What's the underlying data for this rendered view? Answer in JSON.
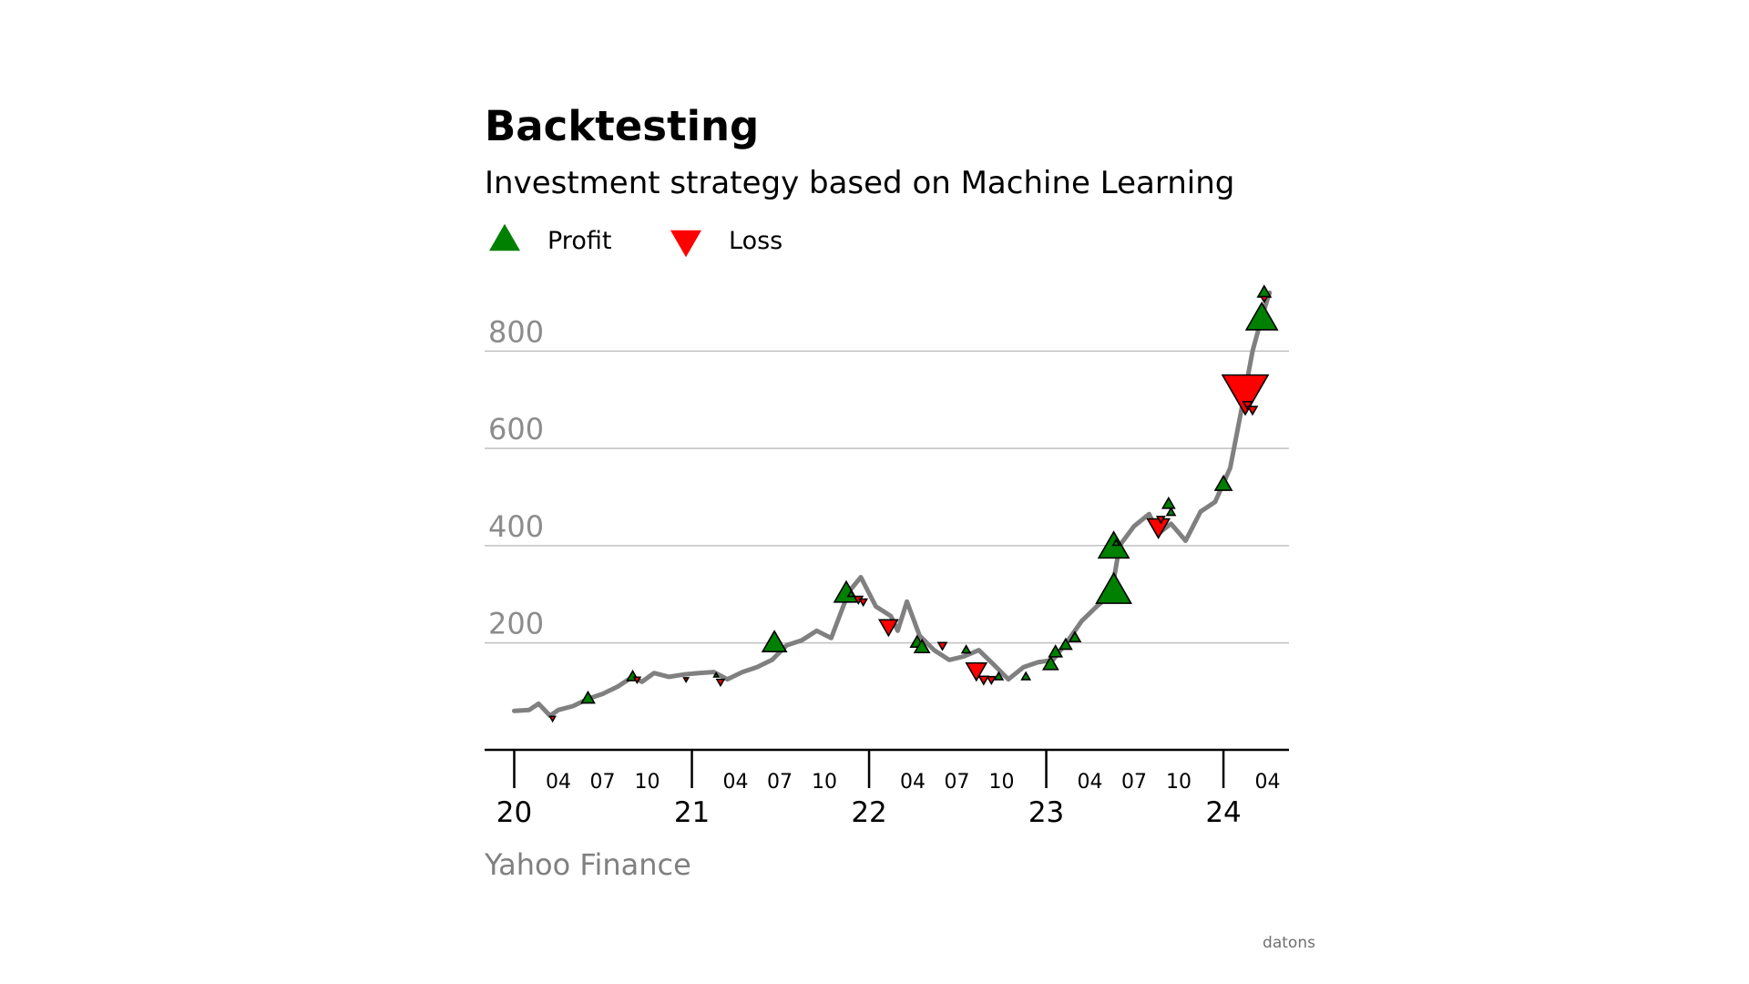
{
  "chart_data": {
    "type": "line",
    "title": "Backtesting",
    "subtitle": "Investment strategy based on Machine Learning",
    "source": "Yahoo Finance",
    "credit": "datons",
    "legend": {
      "placement": "top-left",
      "entries": [
        {
          "label": "Profit",
          "marker": "triangle-up",
          "color": "#008000"
        },
        {
          "label": "Loss",
          "marker": "triangle-down",
          "color": "#ff0000"
        }
      ]
    },
    "colors": {
      "line": "#808080",
      "profit": "#008000",
      "loss": "#ff0000",
      "grid": "#c0c0c0"
    },
    "grid": "horizontal",
    "ylim": [
      -20,
      960
    ],
    "xlim": [
      "2019-11-01",
      "2024-05-15"
    ],
    "y_ticks": [
      {
        "value": 200,
        "label": "200"
      },
      {
        "value": 400,
        "label": "400"
      },
      {
        "value": 600,
        "label": "600"
      },
      {
        "value": 800,
        "label": "800"
      }
    ],
    "x_major_ticks": [
      {
        "date": "2020-01-01",
        "label": "20"
      },
      {
        "date": "2021-01-01",
        "label": "21"
      },
      {
        "date": "2022-01-01",
        "label": "22"
      },
      {
        "date": "2023-01-01",
        "label": "23"
      },
      {
        "date": "2024-01-01",
        "label": "24"
      }
    ],
    "x_minor_ticks": [
      {
        "date": "2020-04-01",
        "label": "04"
      },
      {
        "date": "2020-07-01",
        "label": "07"
      },
      {
        "date": "2020-10-01",
        "label": "10"
      },
      {
        "date": "2021-04-01",
        "label": "04"
      },
      {
        "date": "2021-07-01",
        "label": "07"
      },
      {
        "date": "2021-10-01",
        "label": "10"
      },
      {
        "date": "2022-04-01",
        "label": "04"
      },
      {
        "date": "2022-07-01",
        "label": "07"
      },
      {
        "date": "2022-10-01",
        "label": "10"
      },
      {
        "date": "2023-04-01",
        "label": "04"
      },
      {
        "date": "2023-07-01",
        "label": "07"
      },
      {
        "date": "2023-10-01",
        "label": "10"
      },
      {
        "date": "2024-04-01",
        "label": "04"
      }
    ],
    "series": [
      {
        "name": "",
        "points": [
          [
            "2020-01-01",
            60
          ],
          [
            "2020-02-01",
            62
          ],
          [
            "2020-02-20",
            75
          ],
          [
            "2020-03-15",
            50
          ],
          [
            "2020-04-01",
            62
          ],
          [
            "2020-05-01",
            70
          ],
          [
            "2020-06-01",
            85
          ],
          [
            "2020-07-01",
            95
          ],
          [
            "2020-08-01",
            110
          ],
          [
            "2020-09-01",
            130
          ],
          [
            "2020-09-20",
            120
          ],
          [
            "2020-10-15",
            138
          ],
          [
            "2020-11-15",
            130
          ],
          [
            "2020-12-15",
            135
          ],
          [
            "2021-01-15",
            138
          ],
          [
            "2021-02-15",
            140
          ],
          [
            "2021-03-15",
            125
          ],
          [
            "2021-04-15",
            140
          ],
          [
            "2021-05-15",
            150
          ],
          [
            "2021-06-15",
            165
          ],
          [
            "2021-07-15",
            195
          ],
          [
            "2021-08-15",
            205
          ],
          [
            "2021-09-15",
            225
          ],
          [
            "2021-10-15",
            210
          ],
          [
            "2021-11-20",
            305
          ],
          [
            "2021-12-15",
            335
          ],
          [
            "2022-01-15",
            275
          ],
          [
            "2022-02-15",
            255
          ],
          [
            "2022-03-01",
            225
          ],
          [
            "2022-03-20",
            285
          ],
          [
            "2022-04-15",
            215
          ],
          [
            "2022-05-15",
            185
          ],
          [
            "2022-06-15",
            165
          ],
          [
            "2022-07-15",
            172
          ],
          [
            "2022-08-15",
            185
          ],
          [
            "2022-09-15",
            155
          ],
          [
            "2022-10-15",
            125
          ],
          [
            "2022-11-15",
            150
          ],
          [
            "2022-12-15",
            160
          ],
          [
            "2023-01-15",
            165
          ],
          [
            "2023-02-15",
            205
          ],
          [
            "2023-03-15",
            245
          ],
          [
            "2023-04-15",
            275
          ],
          [
            "2023-05-15",
            300
          ],
          [
            "2023-06-01",
            400
          ],
          [
            "2023-07-01",
            440
          ],
          [
            "2023-08-01",
            465
          ],
          [
            "2023-08-20",
            425
          ],
          [
            "2023-09-15",
            445
          ],
          [
            "2023-10-15",
            410
          ],
          [
            "2023-11-15",
            470
          ],
          [
            "2023-12-15",
            490
          ],
          [
            "2024-01-15",
            560
          ],
          [
            "2024-02-15",
            720
          ],
          [
            "2024-03-01",
            800
          ],
          [
            "2024-03-20",
            870
          ],
          [
            "2024-04-05",
            920
          ]
        ]
      }
    ],
    "trades": [
      {
        "date": "2020-03-20",
        "price": 45,
        "result": "loss",
        "size": 6
      },
      {
        "date": "2020-06-01",
        "price": 85,
        "result": "profit",
        "size": 14
      },
      {
        "date": "2020-09-01",
        "price": 130,
        "result": "profit",
        "size": 12
      },
      {
        "date": "2020-09-10",
        "price": 125,
        "result": "loss",
        "size": 7
      },
      {
        "date": "2020-12-20",
        "price": 125,
        "result": "loss",
        "size": 5
      },
      {
        "date": "2021-02-20",
        "price": 133,
        "result": "profit",
        "size": 5
      },
      {
        "date": "2021-03-01",
        "price": 120,
        "result": "loss",
        "size": 8
      },
      {
        "date": "2021-06-20",
        "price": 198,
        "result": "profit",
        "size": 26
      },
      {
        "date": "2021-11-15",
        "price": 300,
        "result": "profit",
        "size": 26
      },
      {
        "date": "2021-11-25",
        "price": 300,
        "result": "profit",
        "size": 7
      },
      {
        "date": "2021-12-10",
        "price": 290,
        "result": "loss",
        "size": 9
      },
      {
        "date": "2021-12-20",
        "price": 285,
        "result": "loss",
        "size": 8
      },
      {
        "date": "2022-02-10",
        "price": 235,
        "result": "loss",
        "size": 20
      },
      {
        "date": "2022-04-10",
        "price": 200,
        "result": "profit",
        "size": 14
      },
      {
        "date": "2022-04-20",
        "price": 190,
        "result": "profit",
        "size": 16
      },
      {
        "date": "2022-06-01",
        "price": 195,
        "result": "loss",
        "size": 9
      },
      {
        "date": "2022-07-20",
        "price": 185,
        "result": "profit",
        "size": 9
      },
      {
        "date": "2022-08-10",
        "price": 145,
        "result": "loss",
        "size": 22
      },
      {
        "date": "2022-08-25",
        "price": 125,
        "result": "loss",
        "size": 10
      },
      {
        "date": "2022-09-10",
        "price": 125,
        "result": "loss",
        "size": 9
      },
      {
        "date": "2022-09-25",
        "price": 130,
        "result": "profit",
        "size": 9
      },
      {
        "date": "2022-11-20",
        "price": 130,
        "result": "profit",
        "size": 9
      },
      {
        "date": "2023-01-10",
        "price": 155,
        "result": "profit",
        "size": 16
      },
      {
        "date": "2023-01-20",
        "price": 180,
        "result": "profit",
        "size": 14
      },
      {
        "date": "2023-02-10",
        "price": 195,
        "result": "profit",
        "size": 13
      },
      {
        "date": "2023-03-01",
        "price": 210,
        "result": "profit",
        "size": 12
      },
      {
        "date": "2023-05-20",
        "price": 395,
        "result": "profit",
        "size": 33
      },
      {
        "date": "2023-05-20",
        "price": 305,
        "result": "profit",
        "size": 38
      },
      {
        "date": "2023-05-25",
        "price": 405,
        "result": "profit",
        "size": 7
      },
      {
        "date": "2023-08-20",
        "price": 440,
        "result": "loss",
        "size": 24
      },
      {
        "date": "2023-08-25",
        "price": 455,
        "result": "loss",
        "size": 8
      },
      {
        "date": "2023-09-10",
        "price": 485,
        "result": "profit",
        "size": 13
      },
      {
        "date": "2023-09-15",
        "price": 468,
        "result": "profit",
        "size": 9
      },
      {
        "date": "2024-01-01",
        "price": 525,
        "result": "profit",
        "size": 18
      },
      {
        "date": "2024-02-15",
        "price": 720,
        "result": "loss",
        "size": 50
      },
      {
        "date": "2024-02-20",
        "price": 690,
        "result": "loss",
        "size": 10
      },
      {
        "date": "2024-03-01",
        "price": 680,
        "result": "loss",
        "size": 10
      },
      {
        "date": "2024-03-20",
        "price": 865,
        "result": "profit",
        "size": 34
      },
      {
        "date": "2024-03-25",
        "price": 920,
        "result": "profit",
        "size": 14
      },
      {
        "date": "2024-03-25",
        "price": 908,
        "result": "loss",
        "size": 7
      }
    ]
  }
}
